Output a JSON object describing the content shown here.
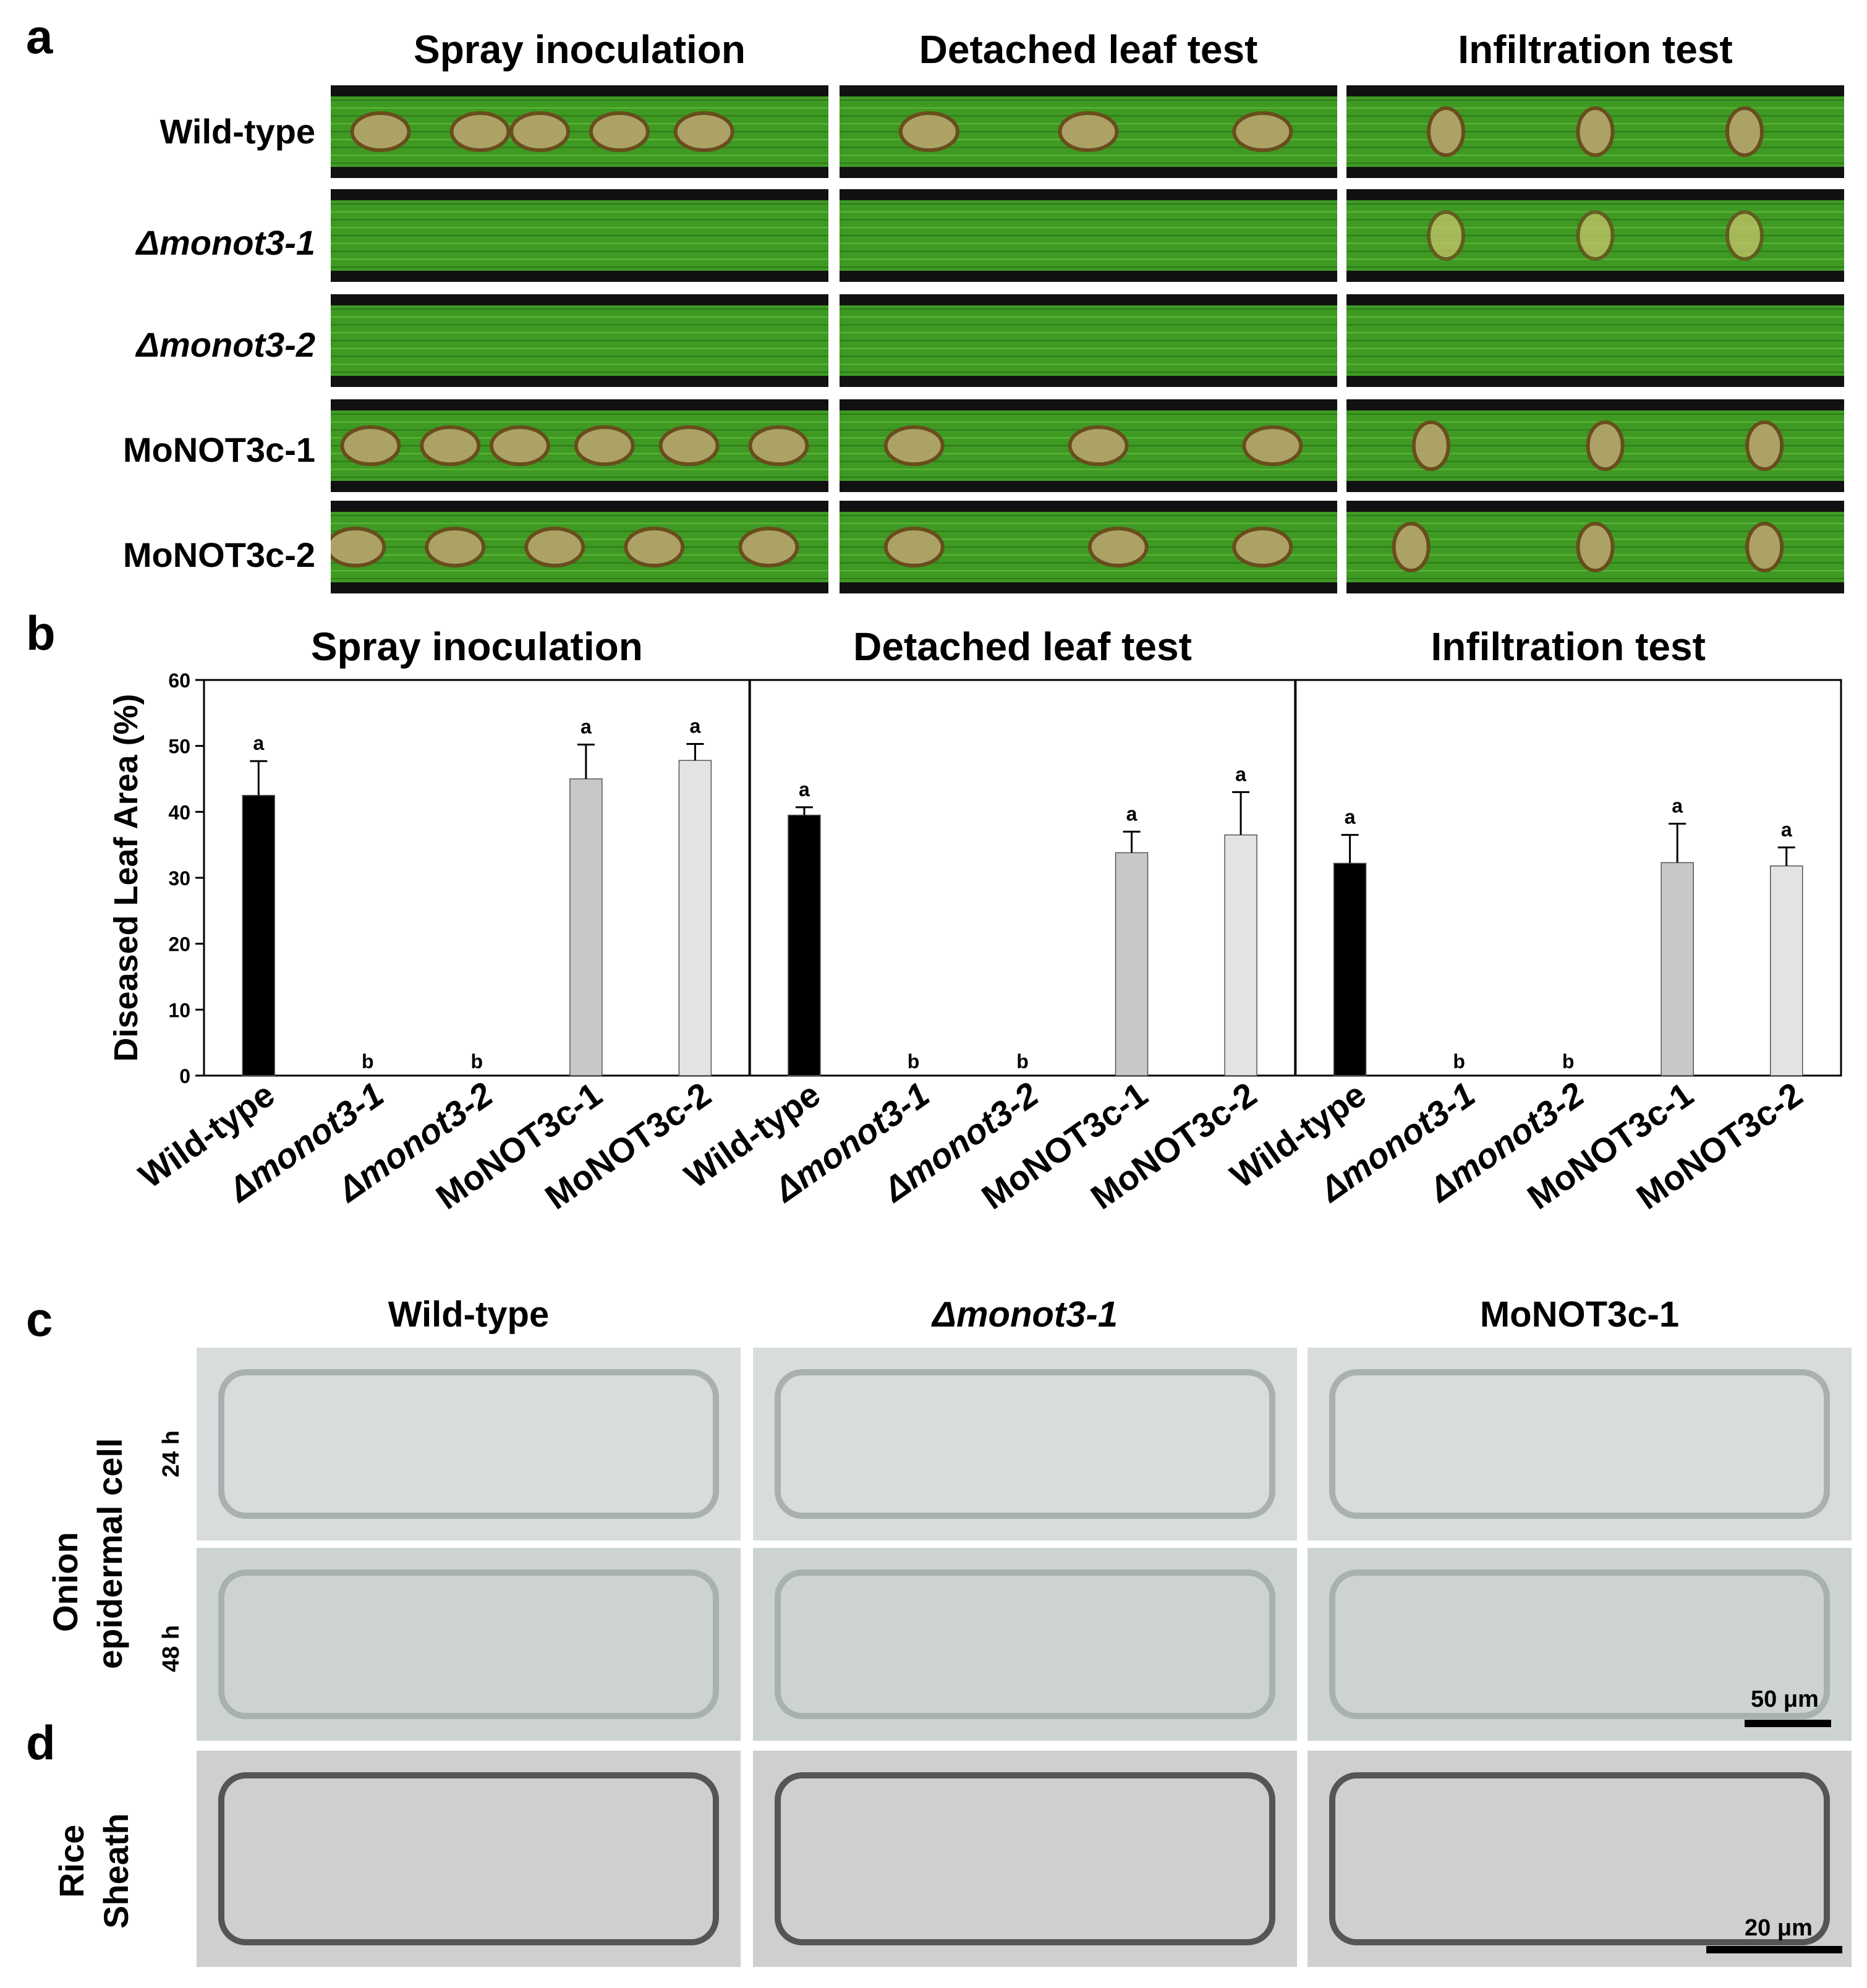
{
  "panels": {
    "a": "a",
    "b": "b",
    "c": "c",
    "d": "d"
  },
  "panel_a": {
    "columns": [
      "Spray inoculation",
      "Detached leaf test",
      "Infiltration test"
    ],
    "rows": [
      "Wild-type",
      "Δmonot3-1",
      "Δmonot3-2",
      "MoNOT3c-1",
      "MoNOT3c-2"
    ]
  },
  "chart_data": {
    "type": "bar",
    "ylabel": "Diseased Leaf Area (%)",
    "ylim": [
      0,
      60
    ],
    "yticks": [
      0,
      10,
      20,
      30,
      40,
      50,
      60
    ],
    "categories": [
      "Wild-type",
      "Δmonot3-1",
      "Δmonot3-2",
      "MoNOT3c-1",
      "MoNOT3c-2"
    ],
    "bar_colors": [
      "#000000",
      "#ffffff",
      "#ffffff",
      "#c8c8c8",
      "#e3e3e3"
    ],
    "groups": [
      {
        "title": "Spray inoculation",
        "values": [
          42.5,
          0,
          0,
          45,
          47.8
        ],
        "errors": [
          5.2,
          0,
          0,
          5.2,
          2.5
        ],
        "letters": [
          "a",
          "b",
          "b",
          "a",
          "a"
        ]
      },
      {
        "title": "Detached leaf test",
        "values": [
          39.5,
          0,
          0,
          33.8,
          36.5
        ],
        "errors": [
          1.2,
          0,
          0,
          3.2,
          6.5
        ],
        "letters": [
          "a",
          "b",
          "b",
          "a",
          "a"
        ]
      },
      {
        "title": "Infiltration test",
        "values": [
          32.2,
          0,
          0,
          32.3,
          31.8
        ],
        "errors": [
          4.3,
          0,
          0,
          5.9,
          2.8
        ],
        "letters": [
          "a",
          "b",
          "b",
          "a",
          "a"
        ]
      }
    ]
  },
  "panel_c": {
    "columns": [
      "Wild-type",
      "Δmonot3-1",
      "MoNOT3c-1"
    ],
    "side_label_line1": "Onion",
    "side_label_line2": "epidermal cell",
    "time_24": "24 h",
    "time_48": "48 h",
    "scale": "50 μm"
  },
  "panel_d": {
    "side_label_line1": "Rice",
    "side_label_line2": "Sheath",
    "scale": "20 μm"
  },
  "colors": {
    "leaf_green": "#3f9a24",
    "leaf_dark": "#2c7a18",
    "lesion": "#b3a36a",
    "micro_bg": "#d9dcdc",
    "sheath_bg": "#cfcfcf"
  }
}
